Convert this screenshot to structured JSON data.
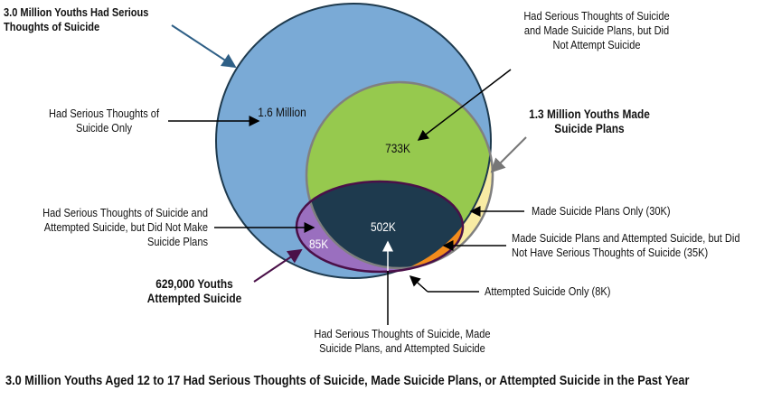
{
  "labels": {
    "thoughts_total": "3.0 Million Youths Had Serious Thoughts of Suicide",
    "thoughts_only": "Had Serious Thoughts of Suicide Only",
    "thoughts_only_value": "1.6 Million",
    "thoughts_plans_no_attempt": "Had Serious Thoughts of Suicide and Made Suicide Plans, but Did Not Attempt Suicide",
    "thoughts_plans_no_attempt_value": "733K",
    "plans_total": "1.3 Million Youths Made Suicide Plans",
    "plans_only": "Made Suicide Plans Only (30K)",
    "thoughts_attempt_no_plans": "Had Serious Thoughts of Suicide and Attempted Suicide, but Did Not Make Suicide Plans",
    "thoughts_attempt_no_plans_value": "85K",
    "all_three_value": "502K",
    "plans_attempt_no_thoughts": "Made Suicide Plans and Attempted Suicide, but Did Not Have Serious Thoughts of Suicide (35K)",
    "attempted_total": "629,000 Youths Attempted Suicide",
    "attempted_only": "Attempted Suicide Only (8K)",
    "all_three": "Had Serious Thoughts of Suicide, Made Suicide Plans, and Attempted Suicide",
    "caption": "3.0 Million Youths Aged 12 to 17 Had Serious Thoughts of Suicide, Made Suicide Plans, or Attempted Suicide in the Past Year"
  },
  "colors": {
    "thoughts_only": "#7aaad6",
    "plans_only": "#f8eba4",
    "thoughts_plans": "#96c94e",
    "attempt_thoughts": "#9a6fbf",
    "all_three": "#1e3a4e",
    "plans_attempt": "#f28c1c",
    "attempt_only": "#d7362a"
  }
}
